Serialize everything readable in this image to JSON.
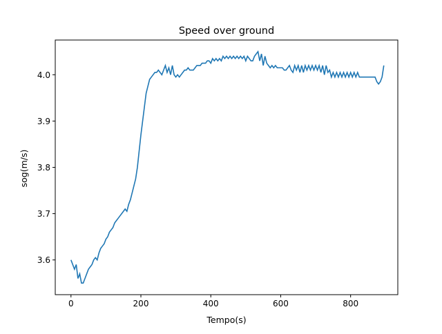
{
  "chart_data": {
    "type": "line",
    "title": "Speed over ground",
    "xlabel": "Tempo(s)",
    "ylabel": "sog(m/s)",
    "xlim": [
      -45,
      935
    ],
    "ylim": [
      3.525,
      4.075
    ],
    "xticks": [
      0,
      200,
      400,
      600,
      800
    ],
    "xtick_labels": [
      "0",
      "200",
      "400",
      "600",
      "800"
    ],
    "yticks": [
      3.6,
      3.7,
      3.8,
      3.9,
      4.0
    ],
    "ytick_labels": [
      "3.6",
      "3.7",
      "3.8",
      "3.9",
      "4.0"
    ],
    "grid": false,
    "legend": false,
    "line_color": "#1f77b4",
    "series": [
      {
        "x": [
          0,
          5,
          10,
          15,
          20,
          25,
          30,
          35,
          40,
          45,
          50,
          55,
          60,
          65,
          70,
          75,
          80,
          85,
          90,
          95,
          100,
          105,
          110,
          115,
          120,
          125,
          130,
          135,
          140,
          145,
          150,
          155,
          160,
          165,
          170,
          175,
          180,
          185,
          190,
          195,
          200,
          205,
          210,
          215,
          220,
          225,
          230,
          235,
          240,
          245,
          250,
          255,
          260,
          265,
          270,
          275,
          280,
          285,
          290,
          295,
          300,
          305,
          310,
          315,
          320,
          325,
          330,
          335,
          340,
          345,
          350,
          355,
          360,
          365,
          370,
          375,
          380,
          385,
          390,
          395,
          400,
          405,
          410,
          415,
          420,
          425,
          430,
          435,
          440,
          445,
          450,
          455,
          460,
          465,
          470,
          475,
          480,
          485,
          490,
          495,
          500,
          505,
          510,
          515,
          520,
          525,
          530,
          535,
          540,
          545,
          550,
          555,
          560,
          565,
          570,
          575,
          580,
          585,
          590,
          595,
          600,
          605,
          610,
          615,
          620,
          625,
          630,
          635,
          640,
          645,
          650,
          655,
          660,
          665,
          670,
          675,
          680,
          685,
          690,
          695,
          700,
          705,
          710,
          715,
          720,
          725,
          730,
          735,
          740,
          745,
          750,
          755,
          760,
          765,
          770,
          775,
          780,
          785,
          790,
          795,
          800,
          805,
          810,
          815,
          820,
          825,
          830,
          835,
          840,
          845,
          850,
          855,
          860,
          865,
          870,
          875,
          880,
          885,
          890,
          895
        ],
        "y": [
          3.6,
          3.59,
          3.58,
          3.59,
          3.56,
          3.57,
          3.55,
          3.55,
          3.56,
          3.57,
          3.58,
          3.585,
          3.59,
          3.6,
          3.605,
          3.6,
          3.615,
          3.625,
          3.63,
          3.635,
          3.645,
          3.65,
          3.66,
          3.665,
          3.67,
          3.68,
          3.685,
          3.69,
          3.695,
          3.7,
          3.705,
          3.71,
          3.705,
          3.72,
          3.73,
          3.745,
          3.76,
          3.775,
          3.8,
          3.835,
          3.87,
          3.9,
          3.93,
          3.96,
          3.975,
          3.99,
          3.995,
          4.0,
          4.005,
          4.005,
          4.01,
          4.005,
          4.0,
          4.01,
          4.02,
          4.005,
          4.015,
          4.0,
          4.02,
          4.0,
          3.995,
          4.0,
          3.995,
          4.0,
          4.005,
          4.01,
          4.01,
          4.015,
          4.01,
          4.01,
          4.01,
          4.015,
          4.02,
          4.02,
          4.02,
          4.025,
          4.025,
          4.025,
          4.03,
          4.03,
          4.025,
          4.035,
          4.03,
          4.035,
          4.03,
          4.035,
          4.03,
          4.04,
          4.035,
          4.04,
          4.035,
          4.04,
          4.035,
          4.04,
          4.035,
          4.04,
          4.035,
          4.04,
          4.035,
          4.04,
          4.03,
          4.04,
          4.035,
          4.03,
          4.03,
          4.04,
          4.045,
          4.05,
          4.03,
          4.045,
          4.02,
          4.04,
          4.025,
          4.02,
          4.015,
          4.02,
          4.015,
          4.02,
          4.015,
          4.015,
          4.015,
          4.015,
          4.01,
          4.01,
          4.015,
          4.02,
          4.01,
          4.005,
          4.02,
          4.01,
          4.02,
          4.005,
          4.02,
          4.005,
          4.02,
          4.01,
          4.02,
          4.01,
          4.02,
          4.01,
          4.02,
          4.01,
          4.02,
          4.005,
          4.02,
          4.0,
          4.02,
          4.005,
          4.01,
          3.995,
          4.005,
          3.995,
          4.005,
          3.995,
          4.005,
          3.995,
          4.005,
          3.995,
          4.005,
          3.995,
          4.005,
          3.995,
          4.005,
          3.995,
          4.005,
          3.995,
          3.995,
          3.995,
          3.995,
          3.995,
          3.995,
          3.995,
          3.995,
          3.995,
          3.995,
          3.985,
          3.98,
          3.985,
          3.995,
          4.02
        ]
      }
    ]
  }
}
